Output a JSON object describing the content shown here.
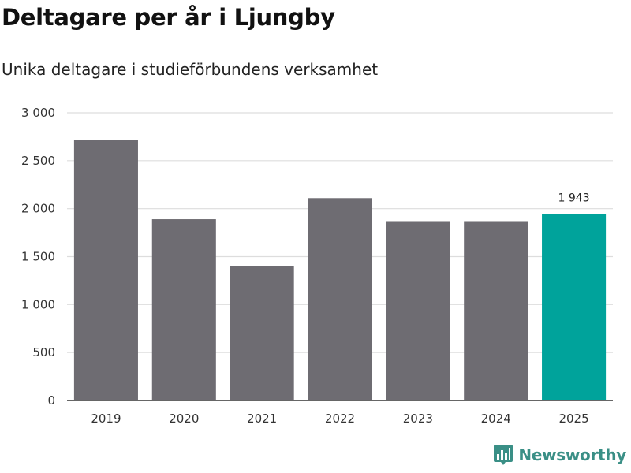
{
  "title": "Deltagare per år i Ljungby",
  "subtitle": "Unika deltagare i studieförbundens verksamhet",
  "brand": {
    "name": "Newsworthy",
    "icon": "bar-chart-badge-icon",
    "color": "#3a8f86"
  },
  "colors": {
    "bar": "#6e6c72",
    "highlight": "#00a39b",
    "grid": "#dddddd",
    "axis": "#333333"
  },
  "chart_data": {
    "type": "bar",
    "title": "Deltagare per år i Ljungby",
    "subtitle": "Unika deltagare i studieförbundens verksamhet",
    "xlabel": "",
    "ylabel": "",
    "categories": [
      "2019",
      "2020",
      "2021",
      "2022",
      "2023",
      "2024",
      "2025"
    ],
    "values": [
      2720,
      1890,
      1400,
      2110,
      1870,
      1870,
      1943
    ],
    "highlight_index": 6,
    "data_labels": [
      {
        "index": 6,
        "text": "1 943"
      }
    ],
    "ylim": [
      0,
      3000
    ],
    "yticks": [
      0,
      500,
      1000,
      1500,
      2000,
      2500,
      3000
    ],
    "ytick_labels": [
      "0",
      "500",
      "1 000",
      "1 500",
      "2 000",
      "2 500",
      "3 000"
    ],
    "grid": true,
    "legend": "none"
  }
}
